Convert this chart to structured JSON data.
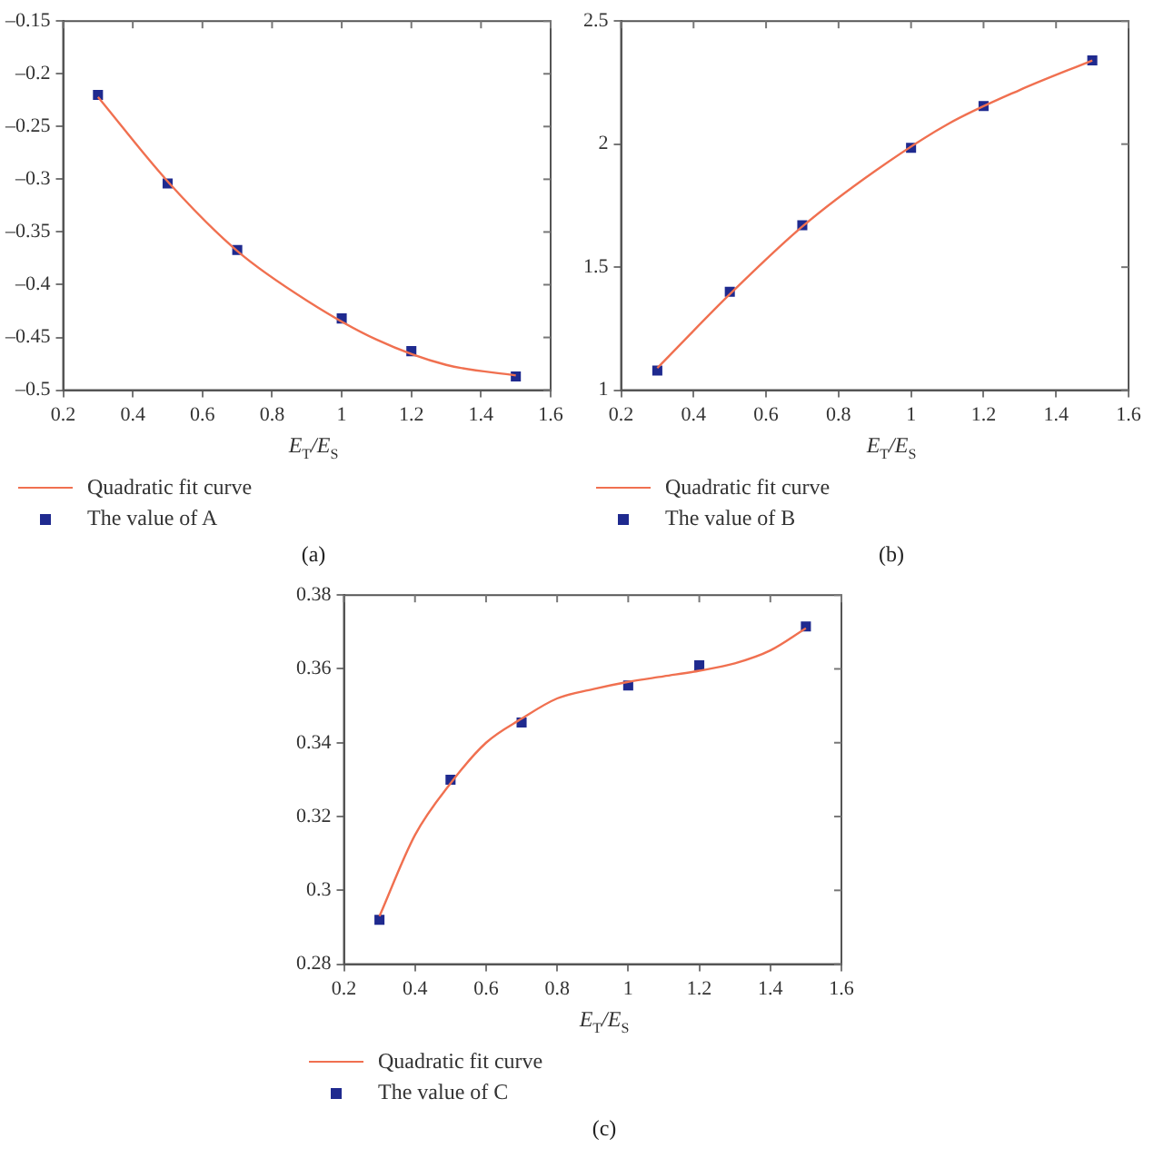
{
  "chart_data": [
    {
      "type": "scatter",
      "xlabel": "E$_{T}$/E$_{S}$",
      "annotations": [
        "(a)"
      ],
      "legend": "bottom left",
      "grid": false,
      "xlim": [
        0.2,
        1.6
      ],
      "xticks": [
        0.2,
        0.4,
        0.6,
        0.8,
        1,
        1.2,
        1.4,
        1.6
      ],
      "ylim": [
        -0.5,
        -0.15
      ],
      "yticks": [
        {
          "value": -0.5,
          "label": "–0.5"
        },
        {
          "value": -0.45,
          "label": "–0.45"
        },
        {
          "value": -0.4,
          "label": "–0.4"
        },
        {
          "value": -0.35,
          "label": "–0.35"
        },
        {
          "value": -0.3,
          "label": "–0.3"
        },
        {
          "value": -0.25,
          "label": "–0.25"
        },
        {
          "value": -0.2,
          "label": "–0.2"
        },
        {
          "value": -0.15,
          "label": "–0.15"
        }
      ],
      "series": [
        {
          "name": "Quadratic fit curve",
          "type": "line",
          "color": "#f07050",
          "marker": "none",
          "x": [
            0.3,
            0.5,
            0.7,
            0.9,
            1.1,
            1.3,
            1.5
          ],
          "values": [
            -0.222,
            -0.302,
            -0.368,
            -0.415,
            -0.452,
            -0.476,
            -0.486
          ]
        },
        {
          "name": "The value of A",
          "type": "scatter",
          "color": "#1f2a8f",
          "marker": "square",
          "x": [
            0.3,
            0.5,
            0.7,
            1.0,
            1.2,
            1.5
          ],
          "values": [
            -0.22,
            -0.304,
            -0.367,
            -0.432,
            -0.463,
            -0.487
          ]
        }
      ]
    },
    {
      "type": "scatter",
      "xlabel": "E$_{T}$/E$_{S}$",
      "annotations": [
        "(b)"
      ],
      "legend": "bottom left",
      "grid": false,
      "xlim": [
        0.2,
        1.6
      ],
      "xticks": [
        0.2,
        0.4,
        0.6,
        0.8,
        1,
        1.2,
        1.4,
        1.6
      ],
      "ylim": [
        1,
        2.5
      ],
      "yticks": [
        1,
        1.5,
        2,
        2.5
      ],
      "series": [
        {
          "name": "Quadratic fit curve",
          "type": "line",
          "color": "#f07050",
          "marker": "none",
          "x": [
            0.3,
            0.5,
            0.7,
            0.9,
            1.1,
            1.3,
            1.5
          ],
          "values": [
            1.09,
            1.39,
            1.665,
            1.89,
            2.08,
            2.22,
            2.34
          ]
        },
        {
          "name": "The value of B",
          "type": "scatter",
          "color": "#1f2a8f",
          "marker": "square",
          "x": [
            0.3,
            0.5,
            0.7,
            1.0,
            1.2,
            1.5
          ],
          "values": [
            1.08,
            1.4,
            1.67,
            1.985,
            2.155,
            2.34
          ]
        }
      ]
    },
    {
      "type": "scatter",
      "xlabel": "E$_{T}$/E$_{S}$",
      "annotations": [
        "(c)"
      ],
      "legend": "bottom left",
      "grid": false,
      "xlim": [
        0.2,
        1.6
      ],
      "xticks": [
        0.2,
        0.4,
        0.6,
        0.8,
        1,
        1.2,
        1.4,
        1.6
      ],
      "ylim": [
        0.28,
        0.38
      ],
      "yticks": [
        0.28,
        0.3,
        0.32,
        0.34,
        0.36,
        0.38
      ],
      "series": [
        {
          "name": "Quadratic fit curve",
          "type": "line",
          "color": "#f07050",
          "marker": "none",
          "x": [
            0.3,
            0.4,
            0.5,
            0.6,
            0.7,
            0.8,
            0.9,
            1.0,
            1.1,
            1.2,
            1.3,
            1.4,
            1.5
          ],
          "values": [
            0.293,
            0.315,
            0.329,
            0.34,
            0.3465,
            0.352,
            0.3545,
            0.3565,
            0.358,
            0.3595,
            0.3615,
            0.365,
            0.371
          ]
        },
        {
          "name": "The value of C",
          "type": "scatter",
          "color": "#1f2a8f",
          "marker": "square",
          "x": [
            0.3,
            0.5,
            0.7,
            1.0,
            1.2,
            1.5
          ],
          "values": [
            0.292,
            0.33,
            0.3455,
            0.3555,
            0.361,
            0.3715
          ]
        }
      ]
    }
  ]
}
